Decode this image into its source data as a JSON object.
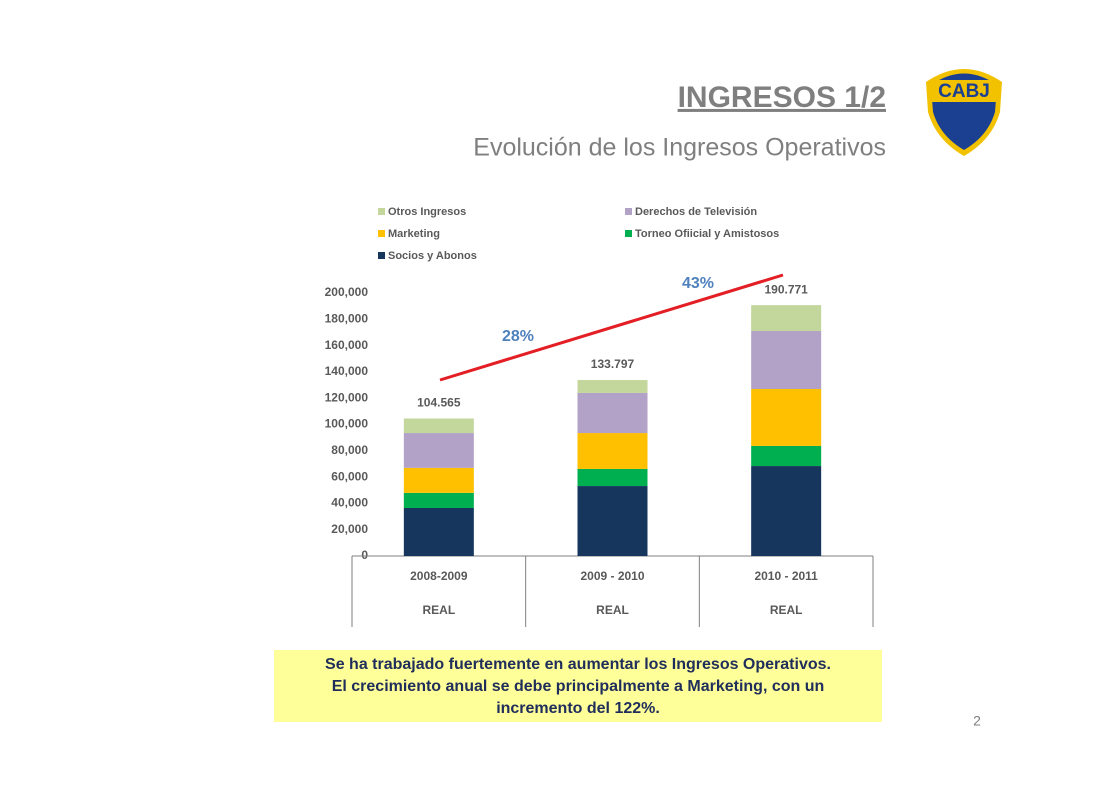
{
  "header": {
    "title": "INGRESOS 1/2",
    "subtitle": "Evolución de los Ingresos Operativos",
    "logo_text": "CABJ"
  },
  "chart_data": {
    "type": "stacked_bar",
    "categories": [
      "2008-2009",
      "2009 - 2010",
      "2010 - 2011"
    ],
    "category_sublabels": [
      "REAL",
      "REAL",
      "REAL"
    ],
    "series": [
      {
        "name": "Socios y Abonos",
        "color": "#17365d",
        "values": [
          36500,
          53200,
          68400
        ]
      },
      {
        "name": "Torneo Ofiicial y Amistosos",
        "color": "#00b050",
        "values": [
          11500,
          13000,
          15300
        ]
      },
      {
        "name": "Marketing",
        "color": "#ffc000",
        "values": [
          19000,
          27300,
          43300
        ]
      },
      {
        "name": "Derechos de Televisión",
        "color": "#b3a2c7",
        "values": [
          26500,
          30500,
          44100
        ]
      },
      {
        "name": "Otros Ingresos",
        "color": "#c3d69b",
        "values": [
          11065,
          9797,
          19671
        ]
      }
    ],
    "totals": [
      104565,
      133797,
      190771
    ],
    "value_labels": [
      "104.565",
      "133.797",
      "190.771"
    ],
    "annotations": [
      "28%",
      "43%"
    ],
    "ylim": [
      0,
      200000
    ],
    "yticks": [
      0,
      {
        "value": 20000,
        "label": "20,000"
      },
      {
        "value": 40000,
        "label": "40,000"
      },
      {
        "value": 60000,
        "label": "60,000"
      },
      {
        "value": 80000,
        "label": "80,000"
      },
      {
        "value": 100000,
        "label": "100,000"
      },
      {
        "value": 120000,
        "label": "120,000"
      },
      {
        "value": 140000,
        "label": "140,000"
      },
      {
        "value": 160000,
        "label": "160,000"
      },
      {
        "value": 180000,
        "label": "180,000"
      },
      {
        "value": 200000,
        "label": "200,000"
      }
    ]
  },
  "note": {
    "lines": [
      "Se ha trabajado fuertemente en aumentar los Ingresos Operativos.",
      "El crecimiento anual se debe principalmente a Marketing, con un",
      "incremento del 122%."
    ]
  },
  "page_number": "2"
}
